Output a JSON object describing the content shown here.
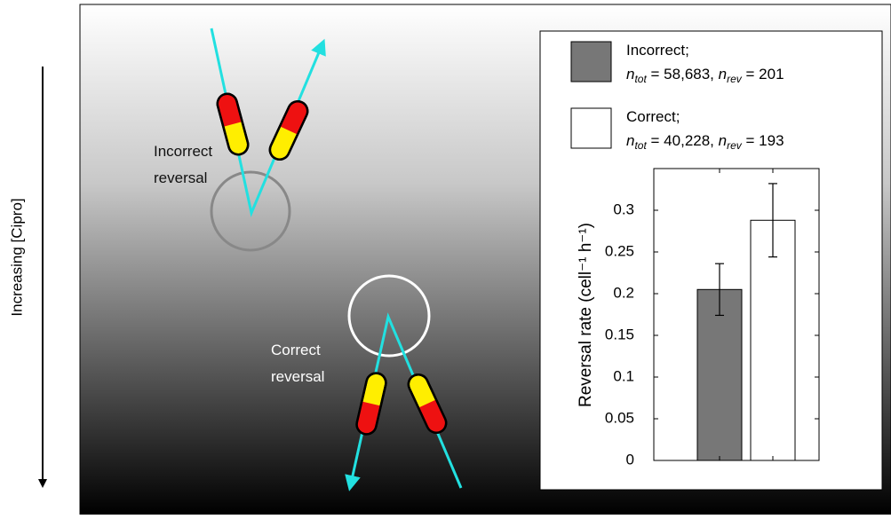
{
  "chart_data": {
    "type": "bar",
    "y_label": "Reversal rate (cell⁻¹ h⁻¹)",
    "series": [
      {
        "name": "Incorrect;",
        "detail": [
          "n",
          "tot",
          " = 58,683, ",
          "n",
          "rev",
          " = 201"
        ],
        "color": "#777777",
        "values": [
          0.205
        ],
        "errors": [
          0.031
        ]
      },
      {
        "name": "Correct;",
        "detail": [
          "n",
          "tot",
          " = 40,228, ",
          "n",
          "rev",
          " = 193"
        ],
        "color": "#ffffff",
        "values": [
          0.288
        ],
        "errors": [
          0.044
        ]
      }
    ],
    "ylim": [
      0,
      0.35
    ],
    "yticks": [
      0,
      0.05,
      0.1,
      0.15,
      0.2,
      0.25,
      0.3
    ]
  },
  "diagram": {
    "gradient_label": "Increasing [Cipro]",
    "incorrect_label": [
      "Incorrect",
      "reversal"
    ],
    "correct_label": [
      "Correct",
      "reversal"
    ]
  }
}
